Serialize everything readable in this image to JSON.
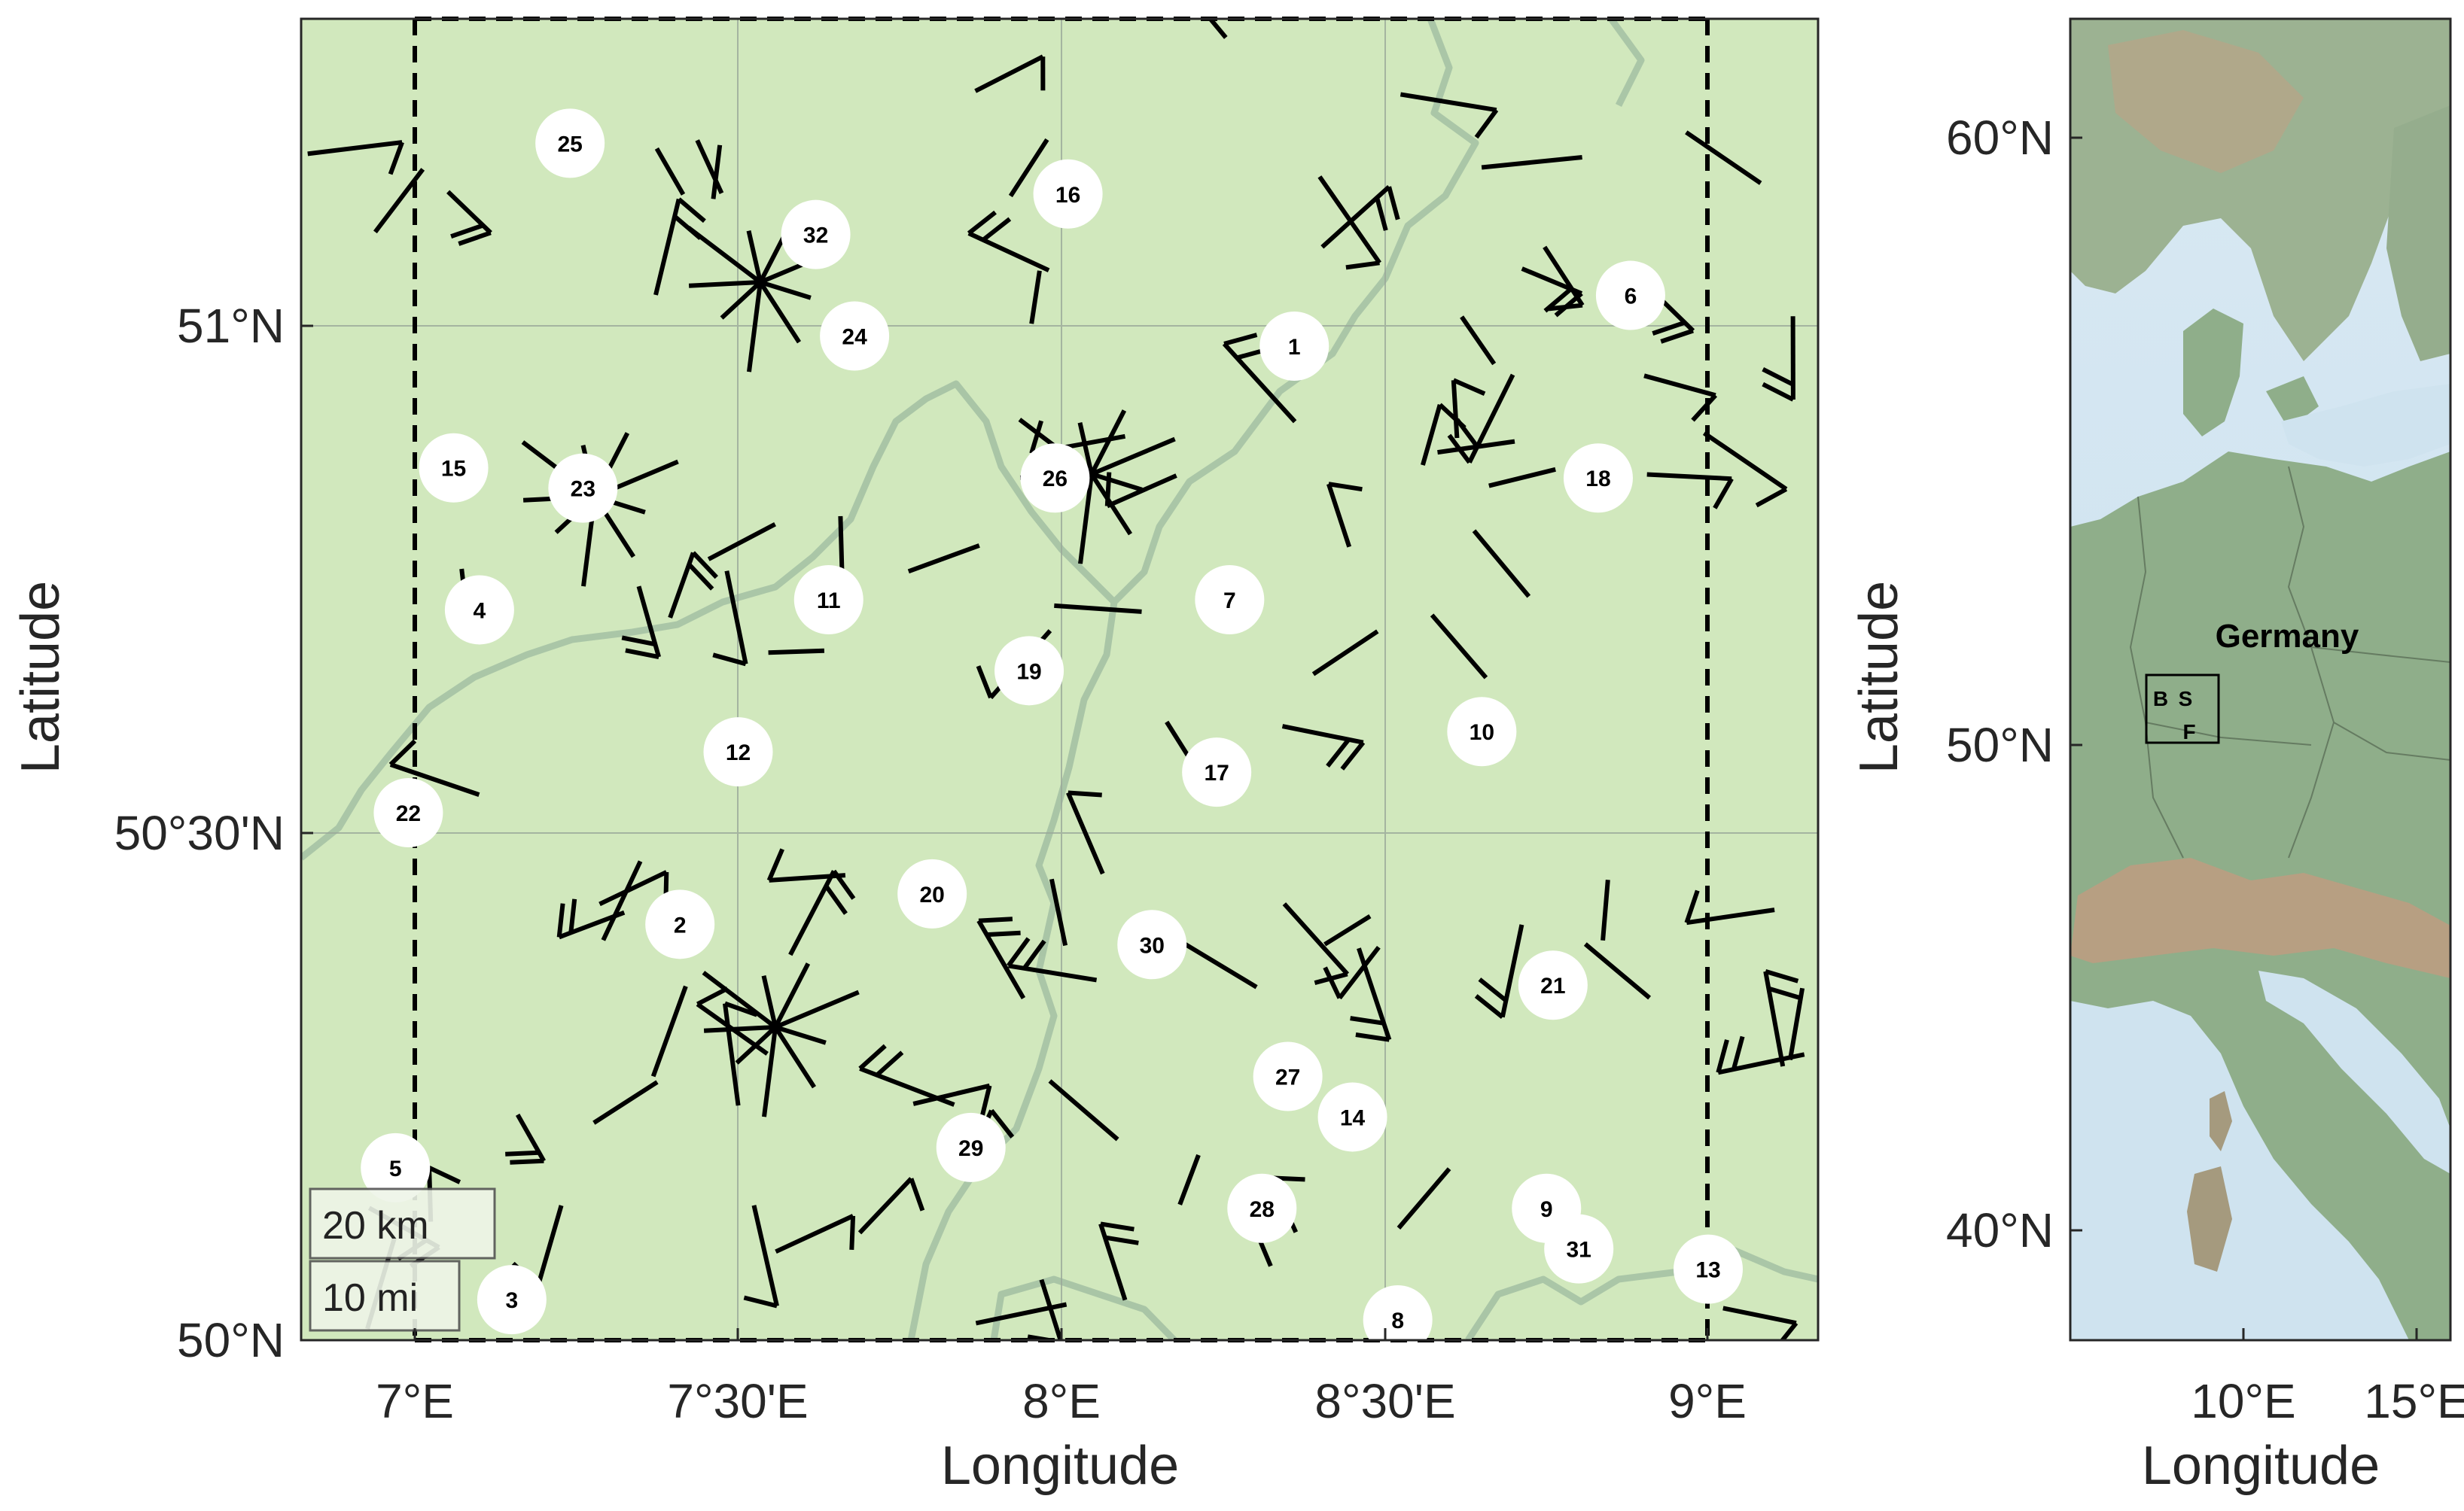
{
  "main_map": {
    "x_axis_label": "Longitude",
    "y_axis_label": "Latitude",
    "x_ticks": [
      "7°E",
      "7°30'E",
      "8°E",
      "8°30'E",
      "9°E"
    ],
    "y_ticks": [
      "51°N",
      "50°30'N",
      "50°N"
    ],
    "scale_bar": {
      "km": "20 km",
      "mi": "10 mi"
    },
    "colors": {
      "land": "#d1e8bd",
      "boundary": "#a3bfa3",
      "grid": "#9aa89a",
      "dashed_box": "#000000",
      "station_fill": "#ffffff"
    },
    "stations": [
      {
        "id": "1",
        "lon": 8.36,
        "lat": 50.98
      },
      {
        "id": "2",
        "lon": 7.41,
        "lat": 50.41
      },
      {
        "id": "3",
        "lon": 7.15,
        "lat": 50.04
      },
      {
        "id": "4",
        "lon": 7.1,
        "lat": 50.72
      },
      {
        "id": "5",
        "lon": 6.97,
        "lat": 50.17
      },
      {
        "id": "6",
        "lon": 8.88,
        "lat": 51.03
      },
      {
        "id": "7",
        "lon": 8.26,
        "lat": 50.73
      },
      {
        "id": "8",
        "lon": 8.52,
        "lat": 50.02
      },
      {
        "id": "9",
        "lon": 8.75,
        "lat": 50.13
      },
      {
        "id": "10",
        "lon": 8.65,
        "lat": 50.6
      },
      {
        "id": "11",
        "lon": 7.64,
        "lat": 50.73
      },
      {
        "id": "12",
        "lon": 7.5,
        "lat": 50.58
      },
      {
        "id": "13",
        "lon": 9.0,
        "lat": 50.07
      },
      {
        "id": "14",
        "lon": 8.45,
        "lat": 50.22
      },
      {
        "id": "15",
        "lon": 7.06,
        "lat": 50.86
      },
      {
        "id": "16",
        "lon": 8.01,
        "lat": 51.13
      },
      {
        "id": "17",
        "lon": 8.24,
        "lat": 50.56
      },
      {
        "id": "18",
        "lon": 8.83,
        "lat": 50.85
      },
      {
        "id": "19",
        "lon": 7.95,
        "lat": 50.66
      },
      {
        "id": "20",
        "lon": 7.8,
        "lat": 50.44
      },
      {
        "id": "21",
        "lon": 8.76,
        "lat": 50.35
      },
      {
        "id": "22",
        "lon": 6.99,
        "lat": 50.52
      },
      {
        "id": "23",
        "lon": 7.26,
        "lat": 50.84
      },
      {
        "id": "24",
        "lon": 7.68,
        "lat": 50.99
      },
      {
        "id": "25",
        "lon": 7.24,
        "lat": 51.18
      },
      {
        "id": "26",
        "lon": 7.99,
        "lat": 50.85
      },
      {
        "id": "27",
        "lon": 8.35,
        "lat": 50.26
      },
      {
        "id": "28",
        "lon": 8.31,
        "lat": 50.13
      },
      {
        "id": "29",
        "lon": 7.86,
        "lat": 50.19
      },
      {
        "id": "30",
        "lon": 8.14,
        "lat": 50.39
      },
      {
        "id": "31",
        "lon": 8.8,
        "lat": 50.09
      },
      {
        "id": "32",
        "lon": 7.62,
        "lat": 51.09
      }
    ]
  },
  "inset_map": {
    "x_axis_label": "Longitude",
    "y_axis_label": "Latitude",
    "x_ticks": [
      "10°E",
      "15°E"
    ],
    "y_ticks": [
      "60°N",
      "50°N",
      "40°N"
    ],
    "country_label": "Germany",
    "box_labels": [
      "B",
      "S",
      "F"
    ],
    "colors": {
      "sea": "#d4e6f1",
      "land": "#8fae8a",
      "mountain": "#b79f82"
    }
  }
}
